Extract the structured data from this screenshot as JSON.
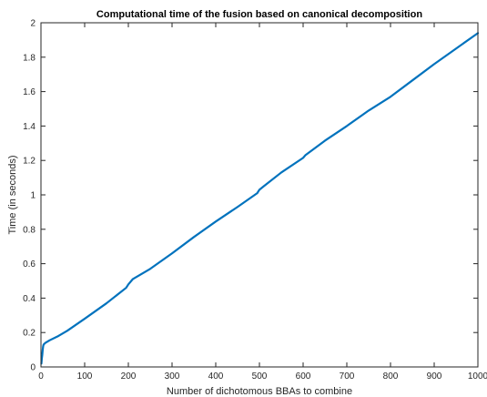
{
  "chart_data": {
    "type": "line",
    "title": "Computational time of the fusion based on canonical decomposition",
    "xlabel": "Number of dichotomous BBAs to combine",
    "ylabel": "Time (in seconds)",
    "xlim": [
      0,
      1000
    ],
    "ylim": [
      0,
      2
    ],
    "xticks": [
      0,
      100,
      200,
      300,
      400,
      500,
      600,
      700,
      800,
      900,
      1000
    ],
    "yticks": [
      0,
      0.2,
      0.4,
      0.6,
      0.8,
      1,
      1.2,
      1.4,
      1.6,
      1.8,
      2
    ],
    "grid": false,
    "box": true,
    "color": "#0072BD",
    "series": [
      {
        "x": [
          1,
          2,
          3,
          4,
          5,
          6,
          8,
          10,
          20,
          40,
          60,
          80,
          100,
          150,
          195,
          200,
          210,
          250,
          300,
          350,
          400,
          450,
          495,
          500,
          510,
          550,
          600,
          605,
          650,
          700,
          750,
          800,
          850,
          900,
          950,
          1000
        ],
        "y": [
          0.02,
          0.05,
          0.07,
          0.1,
          0.12,
          0.13,
          0.135,
          0.14,
          0.155,
          0.18,
          0.21,
          0.245,
          0.28,
          0.37,
          0.46,
          0.48,
          0.51,
          0.57,
          0.66,
          0.755,
          0.845,
          0.93,
          1.01,
          1.03,
          1.05,
          1.13,
          1.215,
          1.23,
          1.315,
          1.4,
          1.49,
          1.57,
          1.665,
          1.76,
          1.85,
          1.94
        ]
      }
    ]
  }
}
